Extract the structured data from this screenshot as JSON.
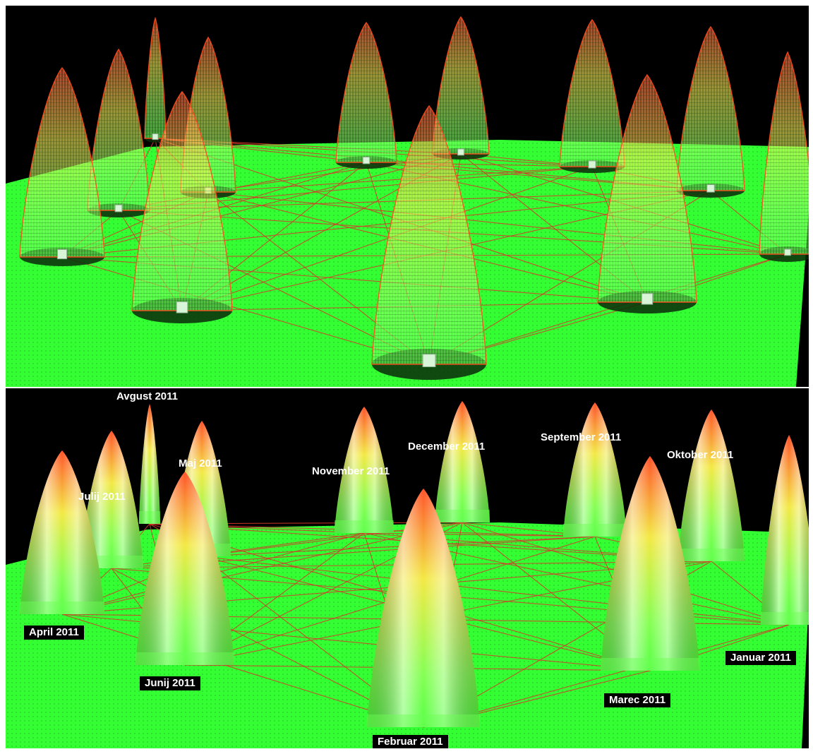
{
  "colors": {
    "ground": "#33ff33",
    "background": "#000000",
    "link": "#d43a2a",
    "peak_tip": "#ff4a1e",
    "peak_mid": "#f2e83a",
    "peak_base": "#7dff4a"
  },
  "scenes": [
    {
      "id": "top",
      "style": "wireframe"
    },
    {
      "id": "bottom",
      "style": "solid"
    }
  ],
  "months": [
    {
      "key": "avgust",
      "label": "Avgust 2011"
    },
    {
      "key": "julij",
      "label": "Julij 2011"
    },
    {
      "key": "maj",
      "label": "Maj 2011"
    },
    {
      "key": "april",
      "label": "April 2011"
    },
    {
      "key": "junij",
      "label": "Junij 2011"
    },
    {
      "key": "november",
      "label": "November 2011"
    },
    {
      "key": "december",
      "label": "December 2011"
    },
    {
      "key": "februar",
      "label": "Februar 2011"
    },
    {
      "key": "september",
      "label": "September 2011"
    },
    {
      "key": "oktober",
      "label": "Oktober 2011"
    },
    {
      "key": "marec",
      "label": "Marec 2011"
    },
    {
      "key": "januar",
      "label": "Januar 2011"
    }
  ]
}
